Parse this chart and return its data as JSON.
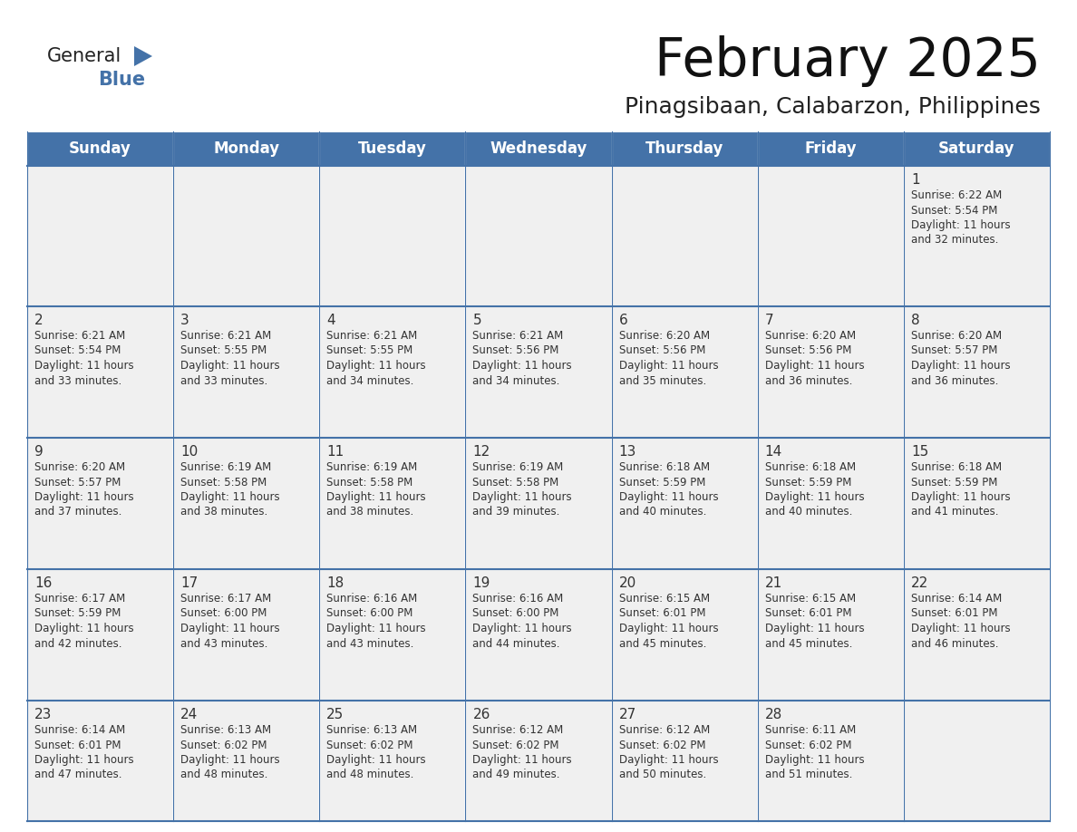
{
  "title": "February 2025",
  "subtitle": "Pinagsibaan, Calabarzon, Philippines",
  "header_bg": "#4472a8",
  "header_text": "#ffffff",
  "cell_bg": "#f0f0f0",
  "border_color": "#4472a8",
  "text_color": "#333333",
  "days_of_week": [
    "Sunday",
    "Monday",
    "Tuesday",
    "Wednesday",
    "Thursday",
    "Friday",
    "Saturday"
  ],
  "calendar_data": [
    [
      null,
      null,
      null,
      null,
      null,
      null,
      {
        "day": 1,
        "sunrise": "6:22 AM",
        "sunset": "5:54 PM",
        "daylight": "11 hours and 32 minutes."
      }
    ],
    [
      {
        "day": 2,
        "sunrise": "6:21 AM",
        "sunset": "5:54 PM",
        "daylight": "11 hours and 33 minutes."
      },
      {
        "day": 3,
        "sunrise": "6:21 AM",
        "sunset": "5:55 PM",
        "daylight": "11 hours and 33 minutes."
      },
      {
        "day": 4,
        "sunrise": "6:21 AM",
        "sunset": "5:55 PM",
        "daylight": "11 hours and 34 minutes."
      },
      {
        "day": 5,
        "sunrise": "6:21 AM",
        "sunset": "5:56 PM",
        "daylight": "11 hours and 34 minutes."
      },
      {
        "day": 6,
        "sunrise": "6:20 AM",
        "sunset": "5:56 PM",
        "daylight": "11 hours and 35 minutes."
      },
      {
        "day": 7,
        "sunrise": "6:20 AM",
        "sunset": "5:56 PM",
        "daylight": "11 hours and 36 minutes."
      },
      {
        "day": 8,
        "sunrise": "6:20 AM",
        "sunset": "5:57 PM",
        "daylight": "11 hours and 36 minutes."
      }
    ],
    [
      {
        "day": 9,
        "sunrise": "6:20 AM",
        "sunset": "5:57 PM",
        "daylight": "11 hours and 37 minutes."
      },
      {
        "day": 10,
        "sunrise": "6:19 AM",
        "sunset": "5:58 PM",
        "daylight": "11 hours and 38 minutes."
      },
      {
        "day": 11,
        "sunrise": "6:19 AM",
        "sunset": "5:58 PM",
        "daylight": "11 hours and 38 minutes."
      },
      {
        "day": 12,
        "sunrise": "6:19 AM",
        "sunset": "5:58 PM",
        "daylight": "11 hours and 39 minutes."
      },
      {
        "day": 13,
        "sunrise": "6:18 AM",
        "sunset": "5:59 PM",
        "daylight": "11 hours and 40 minutes."
      },
      {
        "day": 14,
        "sunrise": "6:18 AM",
        "sunset": "5:59 PM",
        "daylight": "11 hours and 40 minutes."
      },
      {
        "day": 15,
        "sunrise": "6:18 AM",
        "sunset": "5:59 PM",
        "daylight": "11 hours and 41 minutes."
      }
    ],
    [
      {
        "day": 16,
        "sunrise": "6:17 AM",
        "sunset": "5:59 PM",
        "daylight": "11 hours and 42 minutes."
      },
      {
        "day": 17,
        "sunrise": "6:17 AM",
        "sunset": "6:00 PM",
        "daylight": "11 hours and 43 minutes."
      },
      {
        "day": 18,
        "sunrise": "6:16 AM",
        "sunset": "6:00 PM",
        "daylight": "11 hours and 43 minutes."
      },
      {
        "day": 19,
        "sunrise": "6:16 AM",
        "sunset": "6:00 PM",
        "daylight": "11 hours and 44 minutes."
      },
      {
        "day": 20,
        "sunrise": "6:15 AM",
        "sunset": "6:01 PM",
        "daylight": "11 hours and 45 minutes."
      },
      {
        "day": 21,
        "sunrise": "6:15 AM",
        "sunset": "6:01 PM",
        "daylight": "11 hours and 45 minutes."
      },
      {
        "day": 22,
        "sunrise": "6:14 AM",
        "sunset": "6:01 PM",
        "daylight": "11 hours and 46 minutes."
      }
    ],
    [
      {
        "day": 23,
        "sunrise": "6:14 AM",
        "sunset": "6:01 PM",
        "daylight": "11 hours and 47 minutes."
      },
      {
        "day": 24,
        "sunrise": "6:13 AM",
        "sunset": "6:02 PM",
        "daylight": "11 hours and 48 minutes."
      },
      {
        "day": 25,
        "sunrise": "6:13 AM",
        "sunset": "6:02 PM",
        "daylight": "11 hours and 48 minutes."
      },
      {
        "day": 26,
        "sunrise": "6:12 AM",
        "sunset": "6:02 PM",
        "daylight": "11 hours and 49 minutes."
      },
      {
        "day": 27,
        "sunrise": "6:12 AM",
        "sunset": "6:02 PM",
        "daylight": "11 hours and 50 minutes."
      },
      {
        "day": 28,
        "sunrise": "6:11 AM",
        "sunset": "6:02 PM",
        "daylight": "11 hours and 51 minutes."
      },
      null
    ]
  ],
  "logo_text1": "General",
  "logo_text2": "Blue",
  "logo_triangle_color": "#4472a8",
  "logo_text1_color": "#222222"
}
